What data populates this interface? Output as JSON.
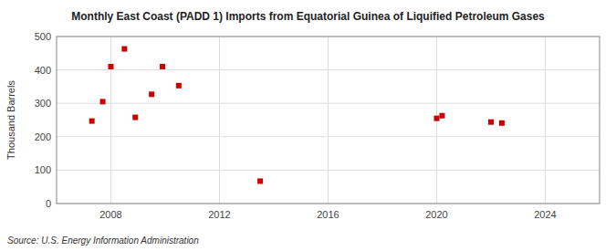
{
  "chart_data": {
    "type": "scatter",
    "title": "Monthly East Coast (PADD 1) Imports from Equatorial Guinea of Liquified Petroleum Gases",
    "y_label": "Thousand Barrels",
    "source": "Source: U.S. Energy Information Administration",
    "x": [
      2007.3,
      2007.7,
      2008.0,
      2008.5,
      2008.9,
      2009.5,
      2009.9,
      2010.5,
      2013.5,
      2020.0,
      2020.2,
      2022.0,
      2022.4
    ],
    "values": [
      247,
      305,
      410,
      463,
      258,
      327,
      410,
      353,
      67,
      255,
      263,
      244,
      241
    ],
    "color": "#cc0000",
    "marker": "square",
    "xlim": [
      2006,
      2026
    ],
    "ylim": [
      0,
      500
    ],
    "xticks": [
      2008,
      2012,
      2016,
      2020,
      2024
    ],
    "yticks": [
      0,
      100,
      200,
      300,
      400,
      500
    ],
    "grid": true
  }
}
